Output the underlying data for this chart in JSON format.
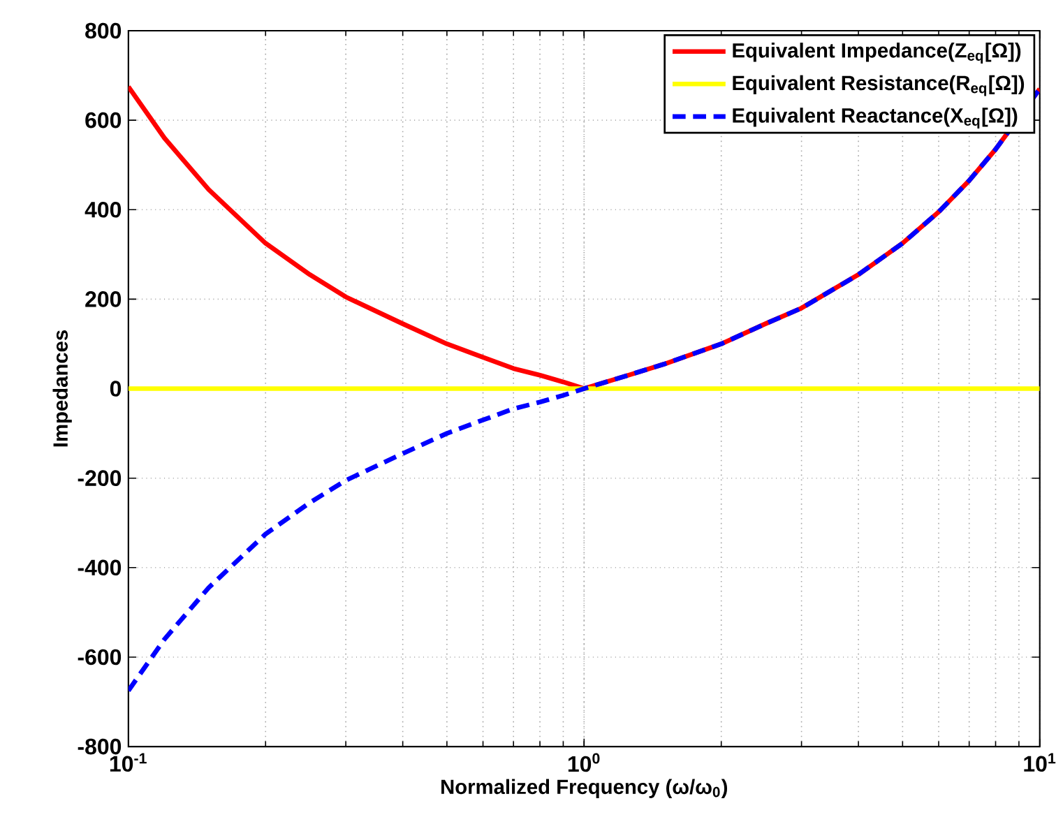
{
  "chart_data": {
    "type": "line",
    "xlabel": "Normalized Frequency (ω/ω$_{0}$)",
    "ylabel": "Impedances",
    "x": [
      0.1,
      0.12,
      0.15,
      0.2,
      0.25,
      0.3,
      0.4,
      0.5,
      0.6,
      0.7,
      0.8,
      0.9,
      1,
      1.25,
      1.5,
      2,
      2.5,
      3,
      4,
      5,
      6,
      7,
      8,
      10
    ],
    "series": [
      {
        "name": "Equivalent Impedance(Z$_{eq}$[Ω])",
        "color": "#ff0000",
        "line_style": "solid",
        "values": [
          675,
          560,
          445,
          325,
          255,
          205,
          145,
          100,
          70,
          45,
          30,
          15,
          0,
          30,
          55,
          100,
          145,
          180,
          255,
          325,
          395,
          465,
          535,
          670
        ]
      },
      {
        "name": "Equivalent Resistance(R$_{eq}$[Ω])",
        "color": "#ffff00",
        "line_style": "solid",
        "values": [
          0,
          0,
          0,
          0,
          0,
          0,
          0,
          0,
          0,
          0,
          0,
          0,
          0,
          0,
          0,
          0,
          0,
          0,
          0,
          0,
          0,
          0,
          0,
          0
        ]
      },
      {
        "name": "Equivalent Reactance(X$_{eq}$[Ω])",
        "color": "#0000ff",
        "line_style": "dashed",
        "values": [
          -675,
          -560,
          -445,
          -325,
          -255,
          -205,
          -145,
          -100,
          -70,
          -45,
          -30,
          -15,
          0,
          30,
          55,
          100,
          145,
          180,
          255,
          325,
          395,
          465,
          535,
          670
        ]
      }
    ],
    "log": "x",
    "xlim": [
      0.1,
      10
    ],
    "xticks": [
      {
        "value": 0.1,
        "label": "10$^{-1}$"
      },
      {
        "value": 1,
        "label": "10$^{0}$"
      },
      {
        "value": 10,
        "label": "10$^{1}$"
      }
    ],
    "ylim": [
      -800,
      800
    ],
    "yticks": [
      -800,
      -600,
      -400,
      -200,
      0,
      200,
      400,
      600,
      800
    ],
    "grid": true,
    "legend": "top right"
  }
}
